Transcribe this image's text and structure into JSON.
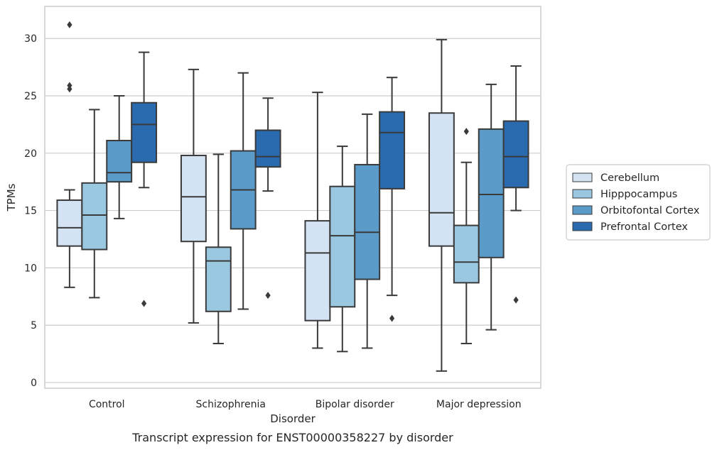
{
  "chart_data": {
    "type": "boxplot",
    "title": "",
    "caption": "Transcript expression for ENST00000358227 by disorder",
    "xlabel": "Disorder",
    "ylabel": "TPMs",
    "ylim": [
      -0.5,
      32.8
    ],
    "yticks": [
      0,
      5,
      10,
      15,
      20,
      25,
      30
    ],
    "ytick_labels": [
      "0",
      "5",
      "10",
      "15",
      "20",
      "25",
      "30"
    ],
    "grid": "horizontal",
    "legend_position": "right",
    "categories": [
      "Control",
      "Schizophrenia",
      "Bipolar disorder",
      "Major depression"
    ],
    "series": [
      {
        "name": "Cerebellum",
        "color": "#d3e3f3",
        "boxes": [
          {
            "whisker_low": 8.3,
            "q1": 11.9,
            "median": 13.5,
            "q3": 15.9,
            "whisker_high": 16.8,
            "outliers": [
              31.2,
              25.9,
              25.6
            ]
          },
          {
            "whisker_low": 5.2,
            "q1": 12.3,
            "median": 16.2,
            "q3": 19.8,
            "whisker_high": 27.3,
            "outliers": []
          },
          {
            "whisker_low": 3.0,
            "q1": 5.4,
            "median": 11.3,
            "q3": 14.1,
            "whisker_high": 25.3,
            "outliers": []
          },
          {
            "whisker_low": 1.0,
            "q1": 11.9,
            "median": 14.8,
            "q3": 23.5,
            "whisker_high": 29.9,
            "outliers": []
          }
        ]
      },
      {
        "name": "Hipppocampus",
        "color": "#9ac8e0",
        "boxes": [
          {
            "whisker_low": 7.4,
            "q1": 11.6,
            "median": 14.6,
            "q3": 17.4,
            "whisker_high": 23.8,
            "outliers": []
          },
          {
            "whisker_low": 3.4,
            "q1": 6.2,
            "median": 10.6,
            "q3": 11.8,
            "whisker_high": 19.9,
            "outliers": []
          },
          {
            "whisker_low": 2.7,
            "q1": 6.6,
            "median": 12.8,
            "q3": 17.1,
            "whisker_high": 20.6,
            "outliers": []
          },
          {
            "whisker_low": 3.4,
            "q1": 8.7,
            "median": 10.5,
            "q3": 13.7,
            "whisker_high": 19.2,
            "outliers": [
              21.9
            ]
          }
        ]
      },
      {
        "name": "Orbitofontal Cortex",
        "color": "#5a9bc9",
        "boxes": [
          {
            "whisker_low": 14.3,
            "q1": 17.5,
            "median": 18.3,
            "q3": 21.1,
            "whisker_high": 25.0,
            "outliers": []
          },
          {
            "whisker_low": 6.4,
            "q1": 13.4,
            "median": 16.8,
            "q3": 20.2,
            "whisker_high": 27.0,
            "outliers": []
          },
          {
            "whisker_low": 3.0,
            "q1": 9.0,
            "median": 13.1,
            "q3": 19.0,
            "whisker_high": 23.4,
            "outliers": []
          },
          {
            "whisker_low": 4.6,
            "q1": 10.9,
            "median": 16.4,
            "q3": 22.1,
            "whisker_high": 26.0,
            "outliers": []
          }
        ]
      },
      {
        "name": "Prefrontal Cortex",
        "color": "#2a6aae",
        "boxes": [
          {
            "whisker_low": 17.0,
            "q1": 19.2,
            "median": 22.5,
            "q3": 24.4,
            "whisker_high": 28.8,
            "outliers": [
              6.9
            ]
          },
          {
            "whisker_low": 16.7,
            "q1": 18.8,
            "median": 19.7,
            "q3": 22.0,
            "whisker_high": 24.8,
            "outliers": [
              7.6
            ]
          },
          {
            "whisker_low": 7.6,
            "q1": 16.9,
            "median": 21.8,
            "q3": 23.6,
            "whisker_high": 26.6,
            "outliers": [
              5.6
            ]
          },
          {
            "whisker_low": 15.0,
            "q1": 17.0,
            "median": 19.7,
            "q3": 22.8,
            "whisker_high": 27.6,
            "outliers": [
              7.2
            ]
          }
        ]
      }
    ]
  }
}
